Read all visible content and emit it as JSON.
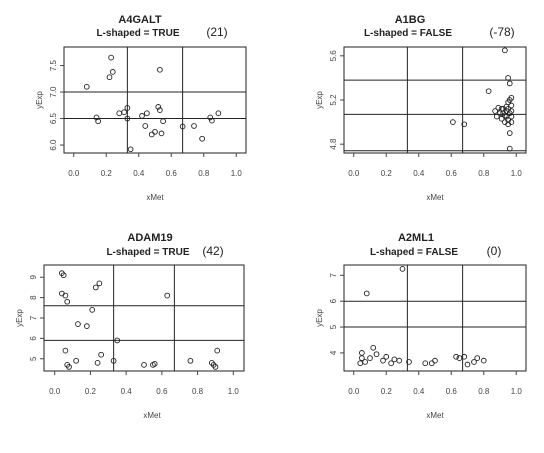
{
  "chart_data": [
    {
      "type": "scatter",
      "title": "A4GALT",
      "subtitle_label": "L-shaped = ",
      "subtitle_value": "TRUE",
      "count": "(21)",
      "xlabel": "xMet",
      "ylabel": "yExp",
      "xlim": [
        -0.06,
        1.06
      ],
      "ylim": [
        5.85,
        7.85
      ],
      "xticks": [
        0.0,
        0.2,
        0.4,
        0.6,
        0.8,
        1.0
      ],
      "xtick_labels": [
        "0.0",
        "0.2",
        "0.4",
        "0.6",
        "0.8",
        "1.0"
      ],
      "yticks": [
        6.0,
        6.5,
        7.0,
        7.5
      ],
      "ytick_labels": [
        "6.0",
        "6.5",
        "7.0",
        "7.5"
      ],
      "vlines": [
        0.33,
        0.67
      ],
      "hlines": [
        6.5,
        7.0
      ],
      "points": [
        [
          0.08,
          7.1
        ],
        [
          0.14,
          6.52
        ],
        [
          0.15,
          6.45
        ],
        [
          0.22,
          7.28
        ],
        [
          0.23,
          7.65
        ],
        [
          0.24,
          7.38
        ],
        [
          0.28,
          6.6
        ],
        [
          0.31,
          6.62
        ],
        [
          0.33,
          6.7
        ],
        [
          0.33,
          6.5
        ],
        [
          0.35,
          5.92
        ],
        [
          0.42,
          6.55
        ],
        [
          0.44,
          6.36
        ],
        [
          0.45,
          6.6
        ],
        [
          0.48,
          6.2
        ],
        [
          0.5,
          6.25
        ],
        [
          0.52,
          6.72
        ],
        [
          0.53,
          6.66
        ],
        [
          0.53,
          7.42
        ],
        [
          0.54,
          6.22
        ],
        [
          0.55,
          6.45
        ],
        [
          0.67,
          6.35
        ],
        [
          0.74,
          6.36
        ],
        [
          0.79,
          6.12
        ],
        [
          0.84,
          6.52
        ],
        [
          0.85,
          6.46
        ],
        [
          0.89,
          6.6
        ]
      ]
    },
    {
      "type": "scatter",
      "title": "A1BG",
      "subtitle_label": "L-shaped = ",
      "subtitle_value": "FALSE",
      "count": "(-78)",
      "xlabel": "xMet",
      "ylabel": "yExp",
      "xlim": [
        -0.06,
        1.06
      ],
      "ylim": [
        4.72,
        5.68
      ],
      "xticks": [
        0.0,
        0.2,
        0.4,
        0.6,
        0.8,
        1.0
      ],
      "xtick_labels": [
        "0.0",
        "0.2",
        "0.4",
        "0.6",
        "0.8",
        "1.0"
      ],
      "yticks": [
        4.8,
        5.2,
        5.6
      ],
      "ytick_labels": [
        "4.8",
        "5.2",
        "5.6"
      ],
      "vlines": [
        0.33,
        0.67
      ],
      "hlines": [
        4.74,
        5.07,
        5.38
      ],
      "points": [
        [
          0.61,
          5.0
        ],
        [
          0.68,
          4.98
        ],
        [
          0.83,
          5.28
        ],
        [
          0.87,
          5.1
        ],
        [
          0.88,
          5.05
        ],
        [
          0.89,
          5.13
        ],
        [
          0.9,
          5.08
        ],
        [
          0.91,
          5.12
        ],
        [
          0.91,
          5.03
        ],
        [
          0.92,
          5.12
        ],
        [
          0.92,
          5.08
        ],
        [
          0.93,
          5.65
        ],
        [
          0.93,
          5.0
        ],
        [
          0.93,
          5.06
        ],
        [
          0.94,
          5.14
        ],
        [
          0.94,
          5.1
        ],
        [
          0.94,
          5.05
        ],
        [
          0.95,
          5.18
        ],
        [
          0.95,
          5.12
        ],
        [
          0.95,
          5.02
        ],
        [
          0.95,
          4.98
        ],
        [
          0.95,
          5.4
        ],
        [
          0.96,
          5.35
        ],
        [
          0.96,
          5.2
        ],
        [
          0.96,
          5.08
        ],
        [
          0.96,
          4.9
        ],
        [
          0.96,
          4.76
        ],
        [
          0.97,
          5.22
        ],
        [
          0.97,
          5.15
        ],
        [
          0.97,
          5.1
        ],
        [
          0.97,
          5.05
        ],
        [
          0.97,
          5.0
        ]
      ]
    },
    {
      "type": "scatter",
      "title": "ADAM19",
      "subtitle_label": "L-shaped = ",
      "subtitle_value": "TRUE",
      "count": "(42)",
      "xlabel": "xMet",
      "ylabel": "yExp",
      "xlim": [
        -0.06,
        1.06
      ],
      "ylim": [
        4.4,
        9.6
      ],
      "xticks": [
        0.0,
        0.2,
        0.4,
        0.6,
        0.8,
        1.0
      ],
      "xtick_labels": [
        "0.0",
        "0.2",
        "0.4",
        "0.6",
        "0.8",
        "1.0"
      ],
      "yticks": [
        5,
        6,
        7,
        8,
        9
      ],
      "ytick_labels": [
        "5",
        "6",
        "7",
        "8",
        "9"
      ],
      "vlines": [
        0.33,
        0.67
      ],
      "hlines": [
        5.9,
        7.6
      ],
      "points": [
        [
          0.04,
          9.2
        ],
        [
          0.05,
          9.1
        ],
        [
          0.04,
          8.2
        ],
        [
          0.06,
          8.1
        ],
        [
          0.07,
          7.8
        ],
        [
          0.06,
          5.4
        ],
        [
          0.07,
          4.7
        ],
        [
          0.08,
          4.6
        ],
        [
          0.12,
          4.9
        ],
        [
          0.13,
          6.7
        ],
        [
          0.18,
          6.6
        ],
        [
          0.21,
          7.4
        ],
        [
          0.23,
          8.5
        ],
        [
          0.25,
          8.7
        ],
        [
          0.24,
          4.8
        ],
        [
          0.26,
          5.2
        ],
        [
          0.33,
          4.9
        ],
        [
          0.35,
          5.9
        ],
        [
          0.5,
          4.7
        ],
        [
          0.55,
          4.7
        ],
        [
          0.56,
          4.75
        ],
        [
          0.63,
          8.1
        ],
        [
          0.76,
          4.9
        ],
        [
          0.88,
          4.8
        ],
        [
          0.89,
          4.7
        ],
        [
          0.9,
          4.6
        ],
        [
          0.91,
          5.4
        ]
      ]
    },
    {
      "type": "scatter",
      "title": "A2ML1",
      "subtitle_label": "L-shaped = ",
      "subtitle_value": "FALSE",
      "count": "(0)",
      "xlabel": "xMet",
      "ylabel": "yExp",
      "xlim": [
        -0.06,
        1.06
      ],
      "ylim": [
        3.3,
        7.4
      ],
      "xticks": [
        0.0,
        0.2,
        0.4,
        0.6,
        0.8,
        1.0
      ],
      "xtick_labels": [
        "0.0",
        "0.2",
        "0.4",
        "0.6",
        "0.8",
        "1.0"
      ],
      "yticks": [
        4,
        5,
        6,
        7
      ],
      "ytick_labels": [
        "4",
        "5",
        "6",
        "7"
      ],
      "vlines": [
        0.33,
        0.67
      ],
      "hlines": [
        5.0,
        6.0
      ],
      "points": [
        [
          0.04,
          3.6
        ],
        [
          0.05,
          3.8
        ],
        [
          0.05,
          4.0
        ],
        [
          0.07,
          3.65
        ],
        [
          0.08,
          6.3
        ],
        [
          0.1,
          3.8
        ],
        [
          0.12,
          4.2
        ],
        [
          0.14,
          3.95
        ],
        [
          0.18,
          3.7
        ],
        [
          0.2,
          3.85
        ],
        [
          0.23,
          3.6
        ],
        [
          0.25,
          3.75
        ],
        [
          0.28,
          3.7
        ],
        [
          0.3,
          7.25
        ],
        [
          0.34,
          3.65
        ],
        [
          0.44,
          3.6
        ],
        [
          0.48,
          3.6
        ],
        [
          0.5,
          3.7
        ],
        [
          0.63,
          3.85
        ],
        [
          0.65,
          3.8
        ],
        [
          0.68,
          3.85
        ],
        [
          0.7,
          3.55
        ],
        [
          0.74,
          3.65
        ],
        [
          0.76,
          3.8
        ],
        [
          0.8,
          3.7
        ]
      ]
    }
  ]
}
